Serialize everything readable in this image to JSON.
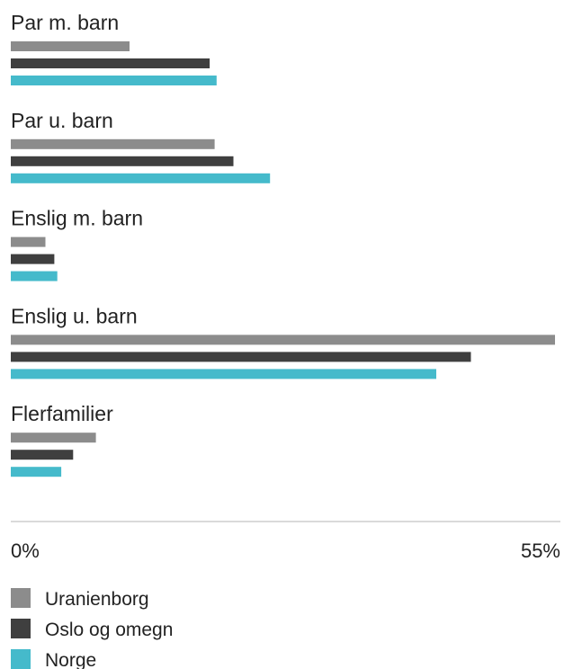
{
  "chart_data": {
    "type": "bar",
    "orientation": "horizontal",
    "categories": [
      "Par m. barn",
      "Par u. barn",
      "Enslig m. barn",
      "Enslig u. barn",
      "Flerfamilier"
    ],
    "series": [
      {
        "name": "Uranienborg",
        "color": "#8c8c8c",
        "values": [
          12.0,
          20.6,
          3.5,
          55.0,
          8.6
        ]
      },
      {
        "name": "Oslo og omegn",
        "color": "#3f3f3f",
        "values": [
          20.1,
          22.5,
          4.4,
          46.5,
          6.3
        ]
      },
      {
        "name": "Norge",
        "color": "#45bacb",
        "values": [
          20.8,
          26.2,
          4.7,
          43.0,
          5.1
        ]
      }
    ],
    "xlim": [
      0,
      55
    ],
    "tick_labels": {
      "min": "0%",
      "max": "55%"
    },
    "legend_position": "bottom-left",
    "grid": false
  }
}
